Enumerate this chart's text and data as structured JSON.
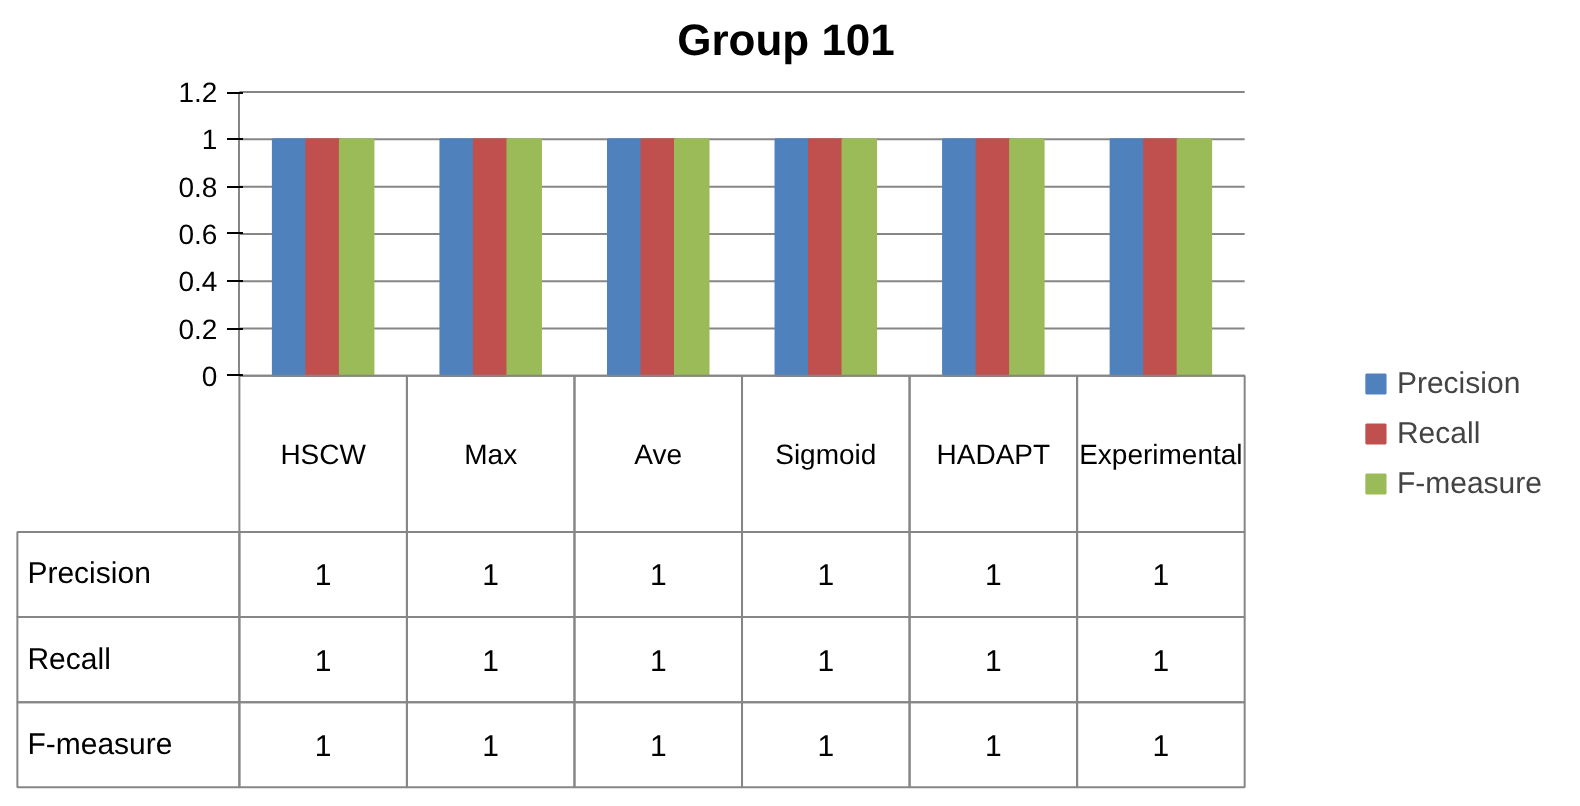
{
  "chart_data": {
    "type": "bar",
    "title": "Group 101",
    "categories": [
      "HSCW",
      "Max",
      "Ave",
      "Sigmoid",
      "HADAPT",
      "Experimental"
    ],
    "series": [
      {
        "name": "Precision",
        "color": "#4f81bd",
        "values": [
          1,
          1,
          1,
          1,
          1,
          1
        ]
      },
      {
        "name": "Recall",
        "color": "#c0504d",
        "values": [
          1,
          1,
          1,
          1,
          1,
          1
        ]
      },
      {
        "name": "F-measure",
        "color": "#9bbb59",
        "values": [
          1,
          1,
          1,
          1,
          1,
          1
        ]
      }
    ],
    "ylim": [
      0,
      1.2
    ],
    "yticks": [
      0,
      0.2,
      0.4,
      0.6,
      0.8,
      1,
      1.2
    ],
    "grid": "y",
    "legend": "right",
    "data_labels": true
  }
}
